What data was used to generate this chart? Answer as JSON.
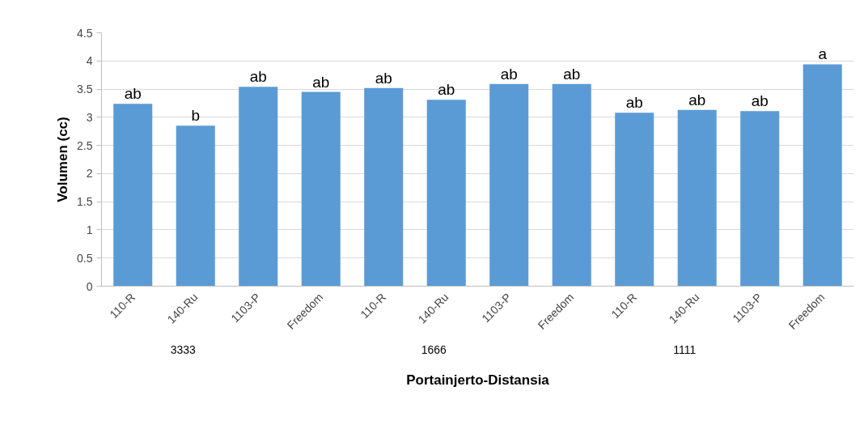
{
  "chart_data": {
    "type": "bar",
    "xlabel": "Portainjerto-Distansia",
    "ylabel": "Volumen (cc)",
    "categories": [
      "110-R",
      "140-Ru",
      "1103-P",
      "Freedom",
      "110-R",
      "140-Ru",
      "1103-P",
      "Freedom",
      "110-R",
      "140-Ru",
      "1103-P",
      "Freedom"
    ],
    "values": [
      3.24,
      2.85,
      3.54,
      3.45,
      3.52,
      3.31,
      3.59,
      3.59,
      3.08,
      3.13,
      3.11,
      3.94
    ],
    "value_labels": [
      "ab",
      "b",
      "ab",
      "ab",
      "ab",
      "ab",
      "ab",
      "ab",
      "ab",
      "ab",
      "ab",
      "a"
    ],
    "color": "#5b9bd5",
    "annotations": [
      "3333",
      "1666",
      "1111"
    ],
    "ylim": [
      0,
      4.5
    ],
    "yticks": [
      0,
      0.5,
      1,
      1.5,
      2,
      2.5,
      3,
      3.5,
      4,
      4.5
    ],
    "grid": "y"
  }
}
